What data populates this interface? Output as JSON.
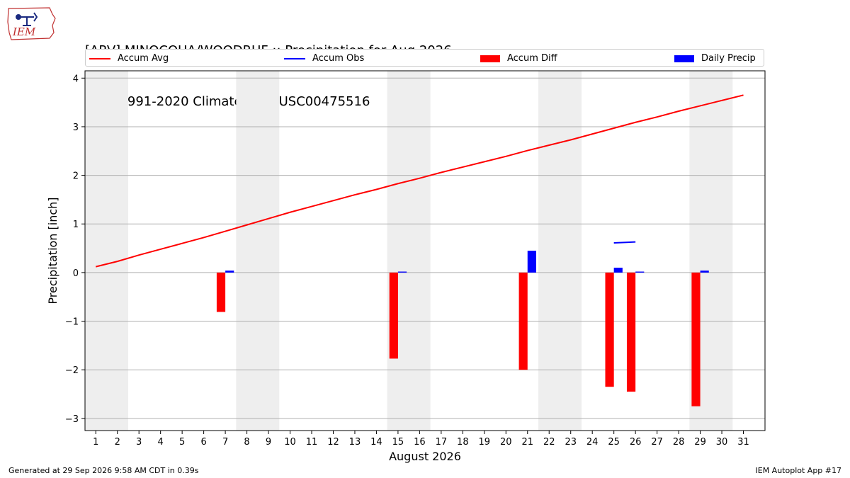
{
  "header": {
    "title_line1": "[ARV] MINOCQUA/WOODRUF :: Precipitation for Aug 2026",
    "title_line2": "NCEI 1991-2020 Climate Site: USC00475516",
    "logo_text": "IEM"
  },
  "legend": [
    {
      "label": "Accum Avg",
      "kind": "line",
      "color": "#ff0000"
    },
    {
      "label": "Accum Obs",
      "kind": "line",
      "color": "#0000ff"
    },
    {
      "label": "Accum Diff",
      "kind": "patch",
      "color": "#ff0000"
    },
    {
      "label": "Daily Precip",
      "kind": "patch",
      "color": "#0000ff"
    }
  ],
  "footer": {
    "left": "Generated at 29 Sep 2026 9:58 AM CDT in 0.39s",
    "right": "IEM Autoplot App #17"
  },
  "chart_data": {
    "type": "bar",
    "title": "[ARV] MINOCQUA/WOODRUF :: Precipitation for Aug 2026",
    "subtitle": "NCEI 1991-2020 Climate Site: USC00475516",
    "xlabel": "August 2026",
    "ylabel": "Precipitation [inch]",
    "ylim": [
      -3.25,
      4.15
    ],
    "yticks": [
      -3,
      -2,
      -1,
      0,
      1,
      2,
      3,
      4
    ],
    "ytick_labels": [
      "−3",
      "−2",
      "−1",
      "0",
      "1",
      "2",
      "3",
      "4"
    ],
    "x": [
      1,
      2,
      3,
      4,
      5,
      6,
      7,
      8,
      9,
      10,
      11,
      12,
      13,
      14,
      15,
      16,
      17,
      18,
      19,
      20,
      21,
      22,
      23,
      24,
      25,
      26,
      27,
      28,
      29,
      30,
      31
    ],
    "weekend_shading": [
      [
        1,
        2
      ],
      [
        8,
        9
      ],
      [
        15,
        16
      ],
      [
        22,
        23
      ],
      [
        29,
        30
      ]
    ],
    "grid": "horizontal",
    "legend_position": "top",
    "colors": {
      "avg": "#ff0000",
      "obs": "#0000ff",
      "diff": "#ff0000",
      "daily": "#0000ff",
      "shade": "#eeeeee",
      "grid": "#b0b0b0"
    },
    "series": [
      {
        "name": "Accum Avg",
        "kind": "line",
        "x": [
          1,
          2,
          3,
          4,
          5,
          6,
          7,
          8,
          9,
          10,
          11,
          12,
          13,
          14,
          15,
          16,
          17,
          18,
          19,
          20,
          21,
          22,
          23,
          24,
          25,
          26,
          27,
          28,
          29,
          30,
          31
        ],
        "values": [
          0.12,
          0.23,
          0.36,
          0.48,
          0.6,
          0.72,
          0.85,
          0.98,
          1.11,
          1.24,
          1.36,
          1.48,
          1.6,
          1.71,
          1.83,
          1.94,
          2.06,
          2.17,
          2.28,
          2.39,
          2.51,
          2.62,
          2.73,
          2.85,
          2.97,
          3.09,
          3.2,
          3.32,
          3.43,
          3.54,
          3.65
        ]
      },
      {
        "name": "Accum Obs",
        "kind": "line",
        "x": [
          25,
          26
        ],
        "values": [
          0.61,
          0.63
        ]
      },
      {
        "name": "Accum Diff",
        "kind": "bar",
        "x": [
          7,
          15,
          21,
          25,
          26,
          29
        ],
        "values": [
          -0.81,
          -1.77,
          -2.0,
          -2.35,
          -2.45,
          -2.75
        ]
      },
      {
        "name": "Daily Precip",
        "kind": "bar",
        "x": [
          7,
          15,
          21,
          25,
          26,
          29
        ],
        "values": [
          0.04,
          0.02,
          0.45,
          0.1,
          0.02,
          0.04
        ]
      }
    ]
  }
}
